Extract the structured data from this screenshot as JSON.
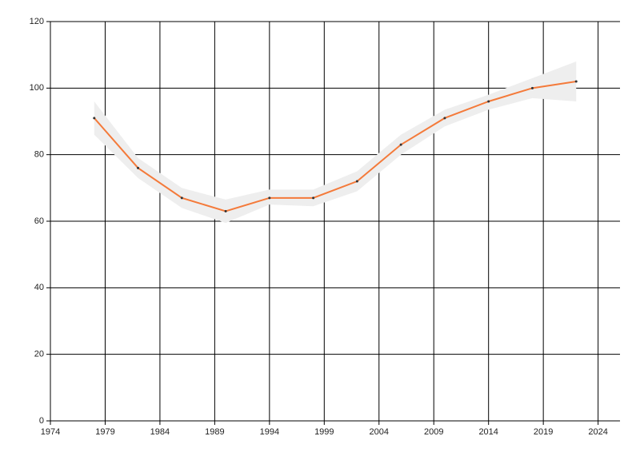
{
  "chart_data": {
    "type": "line",
    "x": [
      1978,
      1982,
      1986,
      1990,
      1994,
      1998,
      2002,
      2006,
      2010,
      2014,
      2018,
      2022
    ],
    "series": [
      {
        "color": "#f47a3a",
        "values": [
          91,
          76,
          67,
          63,
          67,
          67,
          72,
          83,
          91,
          96,
          100,
          102
        ],
        "lower": [
          86,
          73,
          64,
          59.5,
          65,
          64.5,
          69,
          80,
          88.5,
          93.5,
          97,
          96
        ],
        "upper": [
          96,
          79,
          70,
          66.5,
          69.5,
          69.5,
          75,
          86,
          93.5,
          98,
          103,
          108
        ],
        "band_color": "#eeeeee"
      }
    ],
    "xlim": [
      1974,
      2026
    ],
    "xticks": [
      1974,
      1979,
      1984,
      1989,
      1994,
      1999,
      2004,
      2009,
      2014,
      2019,
      2024
    ],
    "ylim": [
      0,
      120
    ],
    "yticks": [
      0,
      20,
      40,
      60,
      80,
      100,
      120
    ],
    "grid": true
  }
}
